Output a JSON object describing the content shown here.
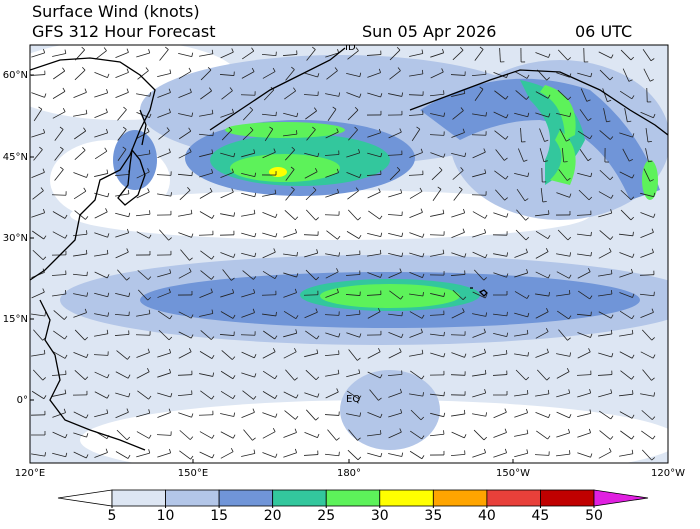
{
  "header": {
    "title": "Surface Wind (knots)",
    "subtitle": "GFS 312 Hour Forecast",
    "date": "Sun 05 Apr 2026",
    "time": "06 UTC"
  },
  "map": {
    "lat_labels": [
      "60°N",
      "45°N",
      "30°N",
      "15°N",
      "0°"
    ],
    "lon_labels": [
      "120°E",
      "150°E",
      "180°",
      "150°W",
      "120°W"
    ],
    "annotations": [
      "ID",
      "EQ"
    ]
  },
  "colorbar": {
    "ticks": [
      5,
      10,
      15,
      20,
      25,
      30,
      35,
      40,
      45,
      50
    ],
    "colors": [
      "#ffffff",
      "#dde6f3",
      "#b3c6e8",
      "#7095d8",
      "#33c79d",
      "#5df25a",
      "#ffff00",
      "#ffa500",
      "#e8403a",
      "#c00000",
      "#e020e0"
    ]
  }
}
